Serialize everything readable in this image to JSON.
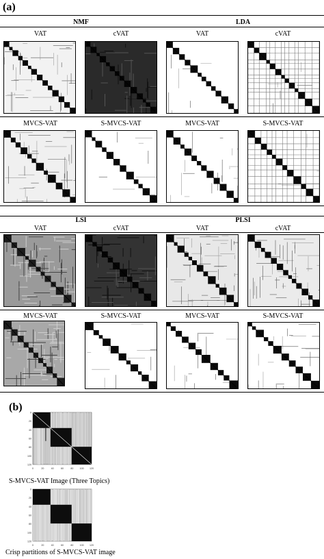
{
  "panel_a": {
    "letter": "(a)",
    "blocks": [
      {
        "groups": [
          "NMF",
          "LDA"
        ],
        "rows": [
          [
            "VAT",
            "cVAT",
            "VAT",
            "cVAT"
          ],
          [
            "MVCS-VAT",
            "S-MVCS-VAT",
            "MVCS-VAT",
            "S-MVCS-VAT"
          ]
        ]
      },
      {
        "groups": [
          "LSI",
          "PLSI"
        ],
        "rows": [
          [
            "VAT",
            "cVAT",
            "VAT",
            "cVAT"
          ],
          [
            "MVCS-VAT",
            "S-MVCS-VAT",
            "MVCS-VAT",
            "S-MVCS-VAT"
          ]
        ]
      }
    ]
  },
  "panel_b": {
    "letter": "(b)",
    "caption_1": "S-MVCS-VAT Image (Three Topics)",
    "caption_2": "Crisp partitions of S-MVCS-VAT image",
    "axis_ticks": [
      "0",
      "20",
      "40",
      "60",
      "80",
      "100",
      "120"
    ]
  }
}
